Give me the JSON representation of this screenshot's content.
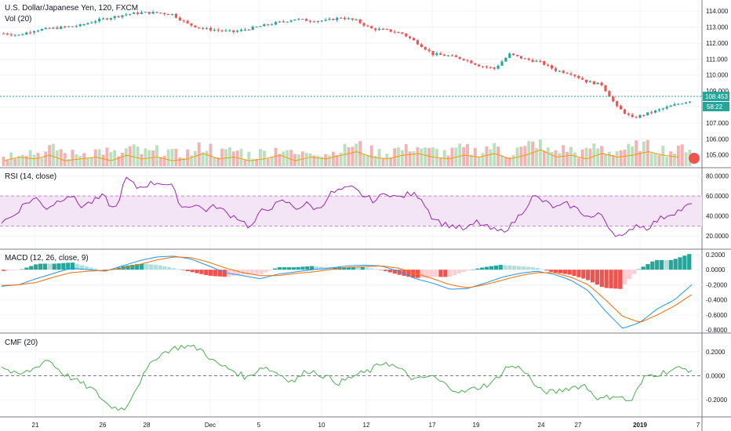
{
  "header": {
    "symbol_title": "U.S. Dollar/Japanese Yen, 120, FXCM",
    "volume_label": "Vol (20)"
  },
  "panes": {
    "rsi_label": "RSI (14, close)",
    "macd_label": "MACD (12, 26, close, 9)",
    "cmf_label": "CMF (20)"
  },
  "price_tags": {
    "last_price": "108.453",
    "countdown": "58:22"
  },
  "colors": {
    "up": "#26a69a",
    "down": "#ef5350",
    "rsi": "#9c27b0",
    "rsi_band": "#f3e5f5",
    "macd": "#2196f3",
    "signal": "#ff6d00",
    "cmf": "#4caf50",
    "grid": "#e0e3eb"
  },
  "chart_data": [
    {
      "type": "candlestick",
      "title": "U.S. Dollar/Japanese Yen, 120, FXCM",
      "y_ticks": [
        "114.000",
        "113.000",
        "112.000",
        "111.000",
        "110.000",
        "109.000",
        "108.000",
        "107.000",
        "106.000",
        "105.000"
      ],
      "x_ticks": [
        "21",
        "26",
        "28",
        "Dec",
        "5",
        "10",
        "12",
        "17",
        "19",
        "24",
        "27",
        "2019",
        "7"
      ],
      "ylim": [
        104.3,
        114.4
      ],
      "close_path": [
        {
          "x": 0,
          "y": 112.6
        },
        {
          "x": 4,
          "y": 112.5
        },
        {
          "x": 8,
          "y": 112.8
        },
        {
          "x": 12,
          "y": 112.9
        },
        {
          "x": 16,
          "y": 113.0
        },
        {
          "x": 20,
          "y": 113.1
        },
        {
          "x": 24,
          "y": 113.4
        },
        {
          "x": 28,
          "y": 113.6
        },
        {
          "x": 32,
          "y": 113.8
        },
        {
          "x": 36,
          "y": 113.9
        },
        {
          "x": 40,
          "y": 113.9
        },
        {
          "x": 44,
          "y": 113.8
        },
        {
          "x": 48,
          "y": 113.2
        },
        {
          "x": 52,
          "y": 112.9
        },
        {
          "x": 56,
          "y": 112.8
        },
        {
          "x": 60,
          "y": 112.7
        },
        {
          "x": 64,
          "y": 112.9
        },
        {
          "x": 68,
          "y": 113.1
        },
        {
          "x": 72,
          "y": 113.3
        },
        {
          "x": 76,
          "y": 113.5
        },
        {
          "x": 80,
          "y": 113.4
        },
        {
          "x": 84,
          "y": 113.4
        },
        {
          "x": 88,
          "y": 113.6
        },
        {
          "x": 92,
          "y": 113.4
        },
        {
          "x": 96,
          "y": 112.9
        },
        {
          "x": 100,
          "y": 112.8
        },
        {
          "x": 104,
          "y": 112.6
        },
        {
          "x": 108,
          "y": 112.0
        },
        {
          "x": 112,
          "y": 111.3
        },
        {
          "x": 116,
          "y": 111.2
        },
        {
          "x": 120,
          "y": 111.0
        },
        {
          "x": 124,
          "y": 110.6
        },
        {
          "x": 128,
          "y": 110.4
        },
        {
          "x": 132,
          "y": 111.3
        },
        {
          "x": 136,
          "y": 111.0
        },
        {
          "x": 140,
          "y": 110.8
        },
        {
          "x": 144,
          "y": 110.3
        },
        {
          "x": 148,
          "y": 110.1
        },
        {
          "x": 152,
          "y": 109.6
        },
        {
          "x": 156,
          "y": 109.4
        },
        {
          "x": 160,
          "y": 108.0
        },
        {
          "x": 164,
          "y": 107.3
        },
        {
          "x": 168,
          "y": 107.6
        },
        {
          "x": 172,
          "y": 107.9
        },
        {
          "x": 176,
          "y": 108.2
        },
        {
          "x": 180,
          "y": 108.45
        }
      ],
      "last_price": 108.453
    },
    {
      "type": "bar",
      "title": "Vol (20)",
      "values_relative": [
        0.3,
        0.5,
        0.4,
        0.6,
        0.3,
        0.4,
        0.5,
        0.3,
        0.6,
        0.4,
        0.5,
        0.3,
        0.4,
        0.7,
        0.4,
        0.5,
        0.3,
        0.4,
        0.6,
        0.3,
        0.5,
        0.4,
        0.6,
        0.8,
        0.5,
        0.4,
        0.6,
        0.7,
        0.5,
        0.4,
        0.6,
        0.5,
        0.7,
        0.4,
        0.6,
        0.9,
        0.5,
        0.6,
        0.4,
        0.7,
        0.5,
        0.6,
        0.8,
        0.6,
        0.5,
        0.7
      ]
    },
    {
      "type": "line",
      "title": "RSI (14, close)",
      "y_ticks": [
        "80.0000",
        "60.0000",
        "40.0000",
        "20.0000"
      ],
      "ylim": [
        10,
        82
      ],
      "band": [
        30,
        60
      ],
      "series": [
        {
          "name": "RSI",
          "values": [
            34,
            40,
            52,
            58,
            48,
            55,
            62,
            50,
            54,
            60,
            45,
            78,
            68,
            72,
            74,
            70,
            48,
            52,
            46,
            50,
            42,
            38,
            28,
            45,
            50,
            55,
            48,
            52,
            46,
            62,
            66,
            68,
            60,
            55,
            64,
            58,
            62,
            60,
            40,
            32,
            30,
            26,
            34,
            28,
            24,
            30,
            44,
            60,
            54,
            48,
            52,
            46,
            38,
            42,
            24,
            18,
            32,
            28,
            36,
            42,
            46,
            52
          ]
        }
      ]
    },
    {
      "type": "line",
      "title": "MACD (12, 26, close, 9)",
      "y_ticks": [
        "0.2000",
        "0.0000",
        "-0.2000",
        "-0.4000",
        "-0.6000",
        "-0.8000"
      ],
      "ylim": [
        -0.82,
        0.22
      ],
      "series": [
        {
          "name": "MACD",
          "values": [
            -0.22,
            -0.2,
            -0.12,
            -0.05,
            0.02,
            0.0,
            -0.02,
            0.05,
            0.12,
            0.17,
            0.18,
            0.14,
            0.05,
            -0.04,
            -0.08,
            -0.12,
            -0.06,
            -0.03,
            0.0,
            0.02,
            0.05,
            0.06,
            0.05,
            -0.02,
            -0.12,
            -0.18,
            -0.26,
            -0.25,
            -0.18,
            -0.1,
            -0.05,
            -0.02,
            -0.06,
            -0.14,
            -0.28,
            -0.55,
            -0.78,
            -0.7,
            -0.52,
            -0.4,
            -0.2
          ]
        },
        {
          "name": "Signal",
          "values": [
            -0.21,
            -0.2,
            -0.17,
            -0.1,
            -0.04,
            -0.02,
            -0.01,
            0.02,
            0.07,
            0.13,
            0.17,
            0.16,
            0.1,
            0.02,
            -0.04,
            -0.08,
            -0.08,
            -0.05,
            -0.03,
            0.0,
            0.03,
            0.04,
            0.05,
            0.02,
            -0.05,
            -0.12,
            -0.2,
            -0.24,
            -0.2,
            -0.14,
            -0.08,
            -0.04,
            -0.04,
            -0.1,
            -0.2,
            -0.4,
            -0.62,
            -0.7,
            -0.6,
            -0.48,
            -0.33
          ]
        }
      ]
    },
    {
      "type": "line",
      "title": "CMF (20)",
      "y_ticks": [
        "0.2000",
        "0.0000",
        "-0.2000"
      ],
      "ylim": [
        -0.33,
        0.31
      ],
      "series": [
        {
          "name": "CMF",
          "values": [
            0.08,
            0.0,
            0.05,
            0.14,
            0.02,
            -0.05,
            -0.12,
            -0.25,
            -0.28,
            -0.05,
            0.15,
            0.22,
            0.25,
            0.22,
            0.1,
            0.05,
            -0.02,
            0.08,
            0.02,
            -0.05,
            0.05,
            0.0,
            -0.06,
            0.0,
            0.04,
            0.12,
            0.05,
            -0.04,
            0.0,
            -0.08,
            -0.14,
            -0.1,
            -0.06,
            0.08,
            0.06,
            -0.12,
            -0.14,
            -0.1,
            -0.08,
            -0.2,
            -0.16,
            -0.22,
            0.0,
            0.02,
            0.06,
            0.05
          ]
        }
      ]
    }
  ]
}
